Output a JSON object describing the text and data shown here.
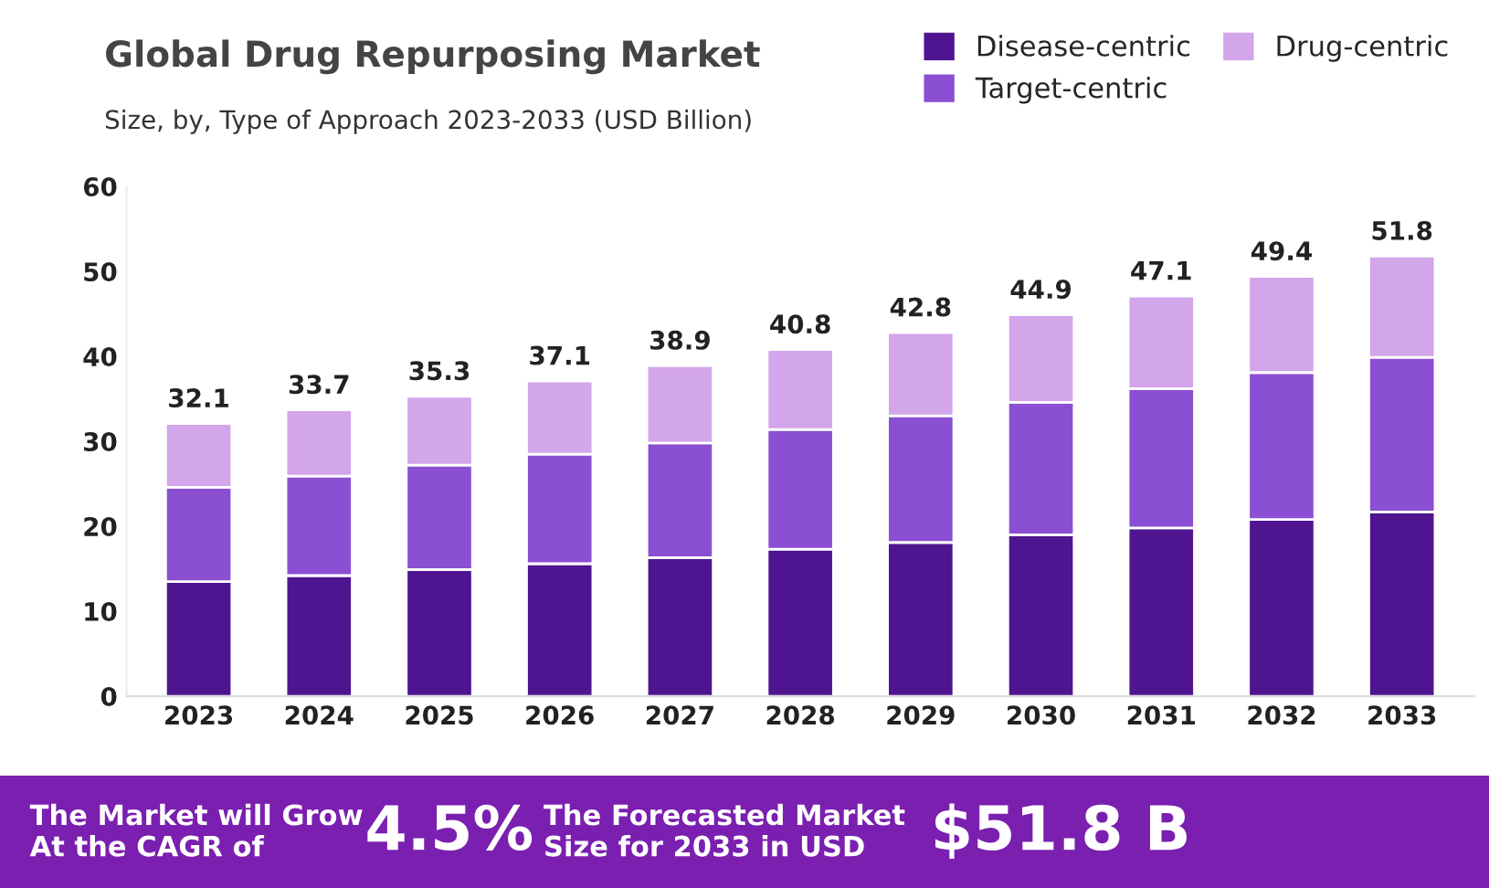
{
  "chart_data": {
    "type": "bar",
    "stacked": true,
    "title": "Global Drug Repurposing Market",
    "subtitle": "Size, by, Type of Approach 2023-2033 (USD Billion)",
    "categories": [
      "2023",
      "2024",
      "2025",
      "2026",
      "2027",
      "2028",
      "2029",
      "2030",
      "2031",
      "2032",
      "2033"
    ],
    "series": [
      {
        "name": "Disease-centric",
        "color": "#4f1590",
        "values": [
          13.5,
          14.2,
          14.9,
          15.6,
          16.3,
          17.3,
          18.1,
          19.0,
          19.8,
          20.8,
          21.7
        ]
      },
      {
        "name": "Target-centric",
        "color": "#8a4fd2",
        "values": [
          11.1,
          11.7,
          12.3,
          12.9,
          13.5,
          14.1,
          14.9,
          15.6,
          16.4,
          17.3,
          18.2
        ]
      },
      {
        "name": "Drug-centric",
        "color": "#d3a5ea",
        "values": [
          7.5,
          7.8,
          8.1,
          8.6,
          9.1,
          9.4,
          9.8,
          10.3,
          10.9,
          11.3,
          11.9
        ]
      }
    ],
    "totals": [
      "32.1",
      "33.7",
      "35.3",
      "37.1",
      "38.9",
      "40.8",
      "42.8",
      "44.9",
      "47.1",
      "49.4",
      "51.8"
    ],
    "ylim": [
      0,
      60
    ],
    "yticks": [
      0,
      10,
      20,
      30,
      40,
      50,
      60
    ],
    "grid": false,
    "legend": "top right",
    "annotations": [
      "The Market will Grow\nAt the CAGR of",
      "4.5%",
      "The Forecasted Market\nSize for 2033 in USD",
      "$51.8 B"
    ]
  }
}
